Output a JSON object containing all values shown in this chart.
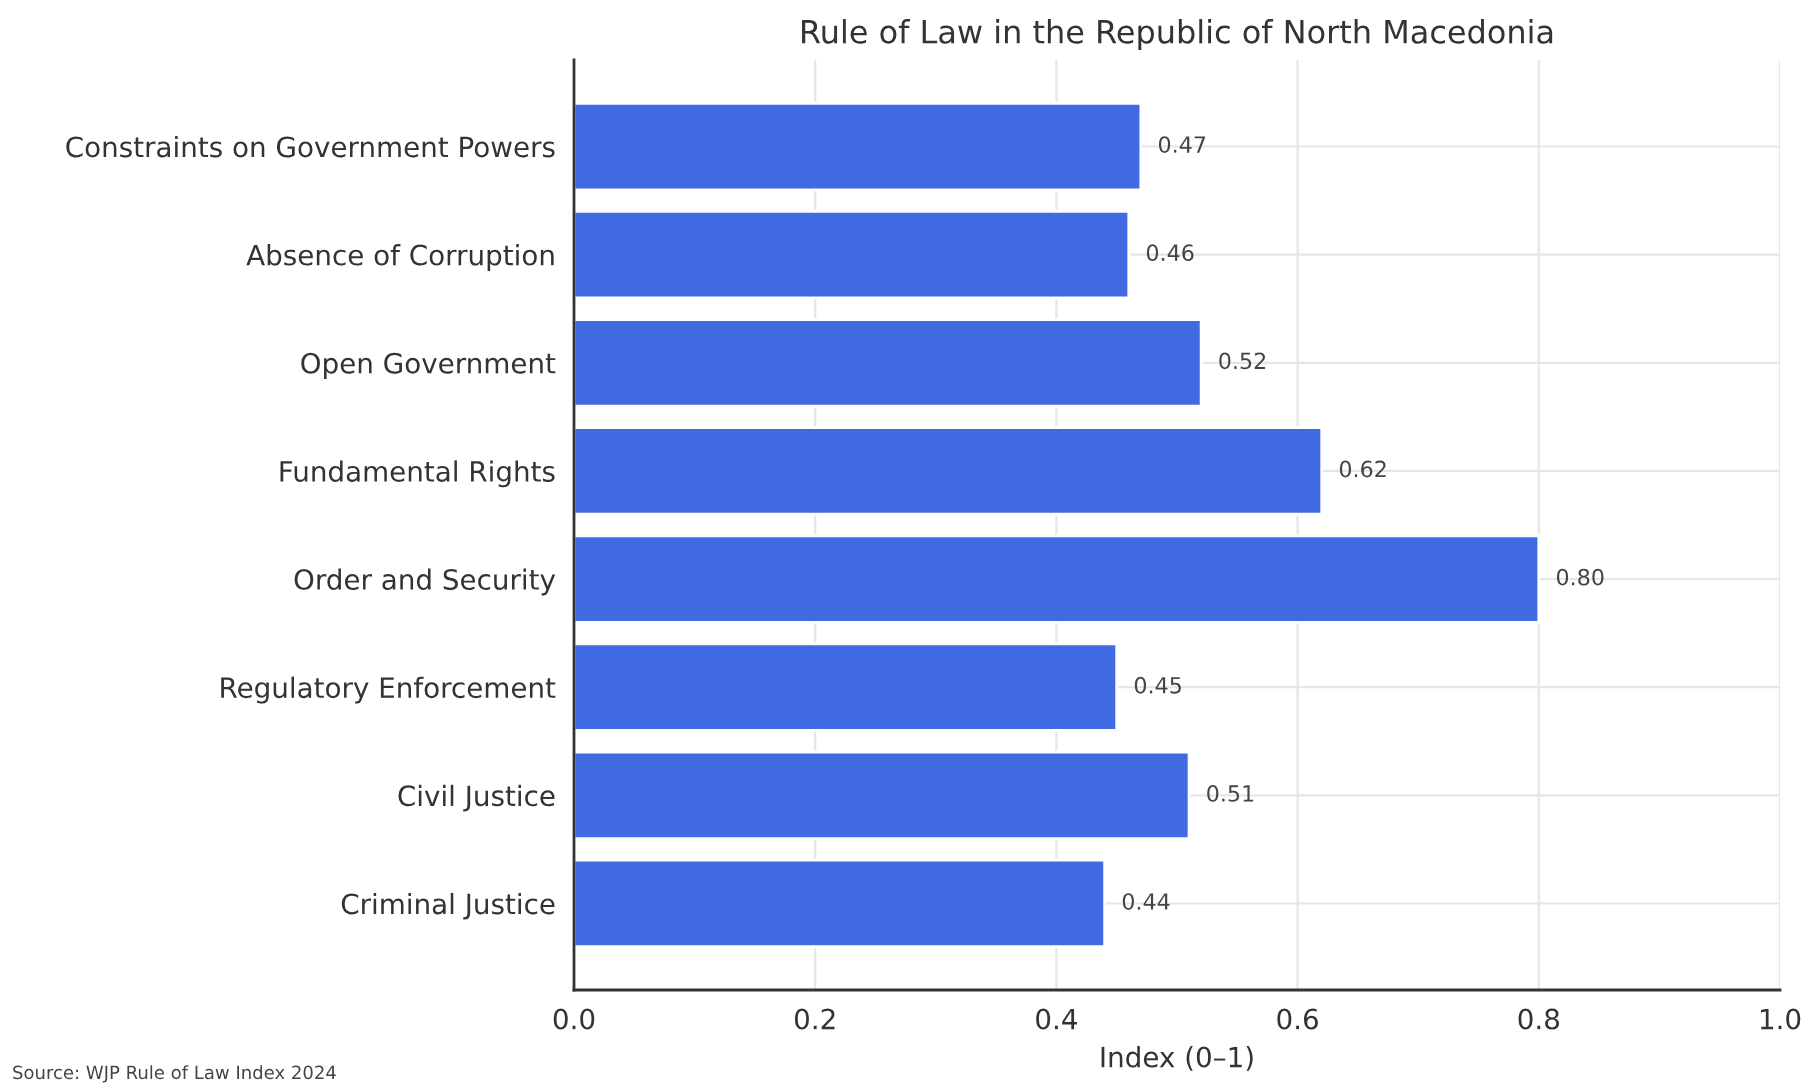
{
  "chart_data": {
    "type": "bar",
    "orientation": "horizontal",
    "title": "Rule of Law in the Republic of North Macedonia",
    "xlabel": "Index (0–1)",
    "categories": [
      "Constraints on Government Powers",
      "Absence of Corruption",
      "Open Government",
      "Fundamental Rights",
      "Order and Security",
      "Regulatory Enforcement",
      "Civil Justice",
      "Criminal Justice"
    ],
    "values": [
      0.47,
      0.46,
      0.52,
      0.62,
      0.8,
      0.45,
      0.51,
      0.44
    ],
    "value_labels": [
      "0.47",
      "0.46",
      "0.52",
      "0.62",
      "0.80",
      "0.45",
      "0.51",
      "0.44"
    ],
    "color": "#4169e1",
    "xlim": [
      0,
      1.0
    ],
    "xticks": [
      {
        "value": 0,
        "label": "0.0"
      },
      {
        "value": 0.2,
        "label": "0.2"
      },
      {
        "value": 0.4,
        "label": "0.4"
      },
      {
        "value": 0.6,
        "label": "0.6"
      },
      {
        "value": 0.8,
        "label": "0.8"
      },
      {
        "value": 1.0,
        "label": "1.0"
      }
    ],
    "grid": true,
    "legend": false,
    "annotations": [
      "Source: WJP Rule of Law Index 2024"
    ]
  }
}
